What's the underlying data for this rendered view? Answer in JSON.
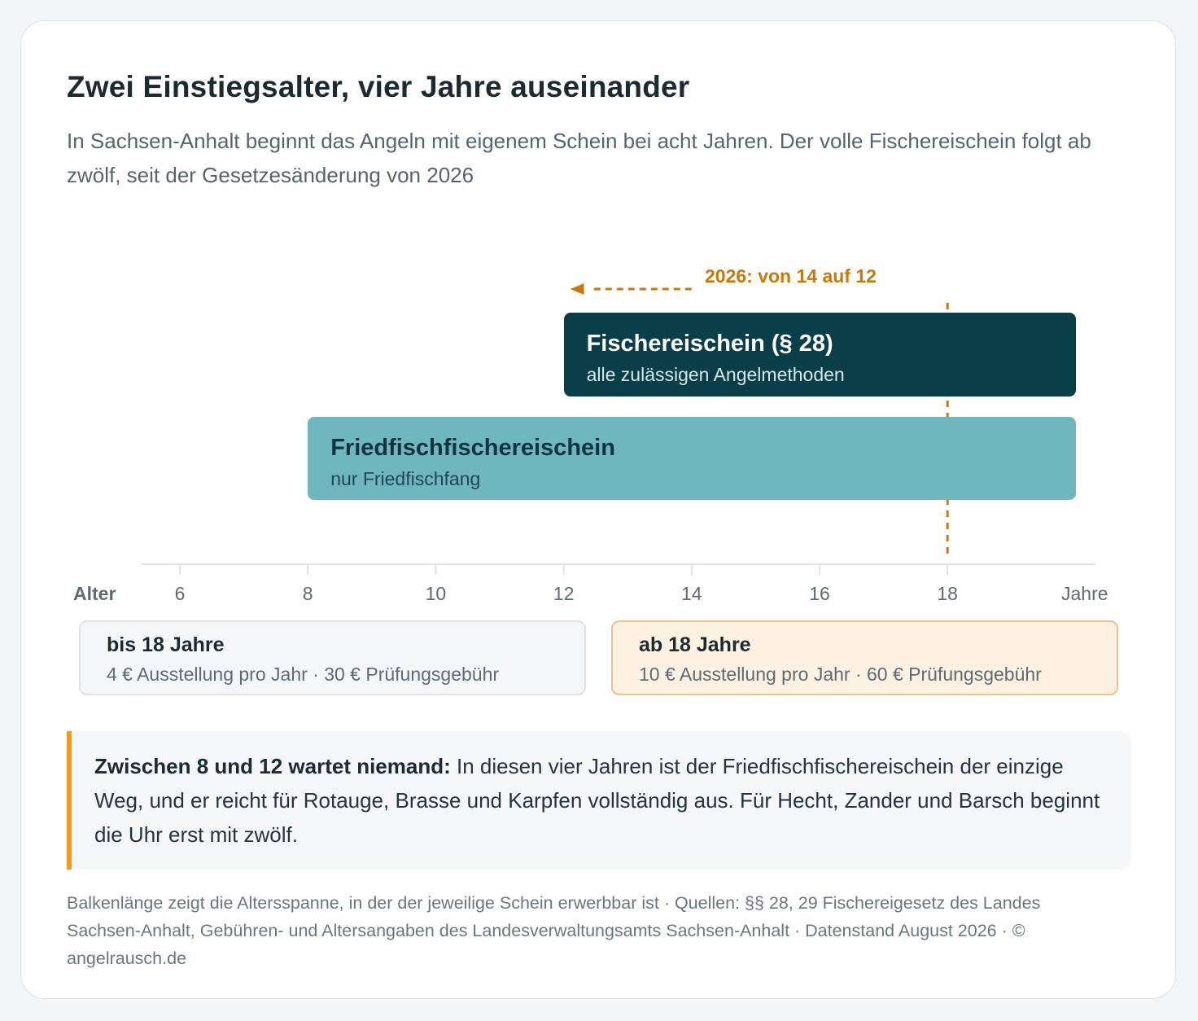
{
  "header": {
    "title": "Zwei Einstiegsalter, vier Jahre auseinander",
    "subtitle": "In Sachsen-Anhalt beginnt das Angeln mit eigenem Schein bei acht Jahren. Der volle Fischereischein folgt ab zwölf, seit der Gesetzesänderung von 2026"
  },
  "chart_data": {
    "type": "bar",
    "orientation": "horizontal",
    "x_axis": {
      "label_left": "Alter",
      "label_right": "Jahre",
      "ticks": [
        6,
        8,
        10,
        12,
        14,
        16,
        18
      ],
      "tick_labels": [
        "6",
        "8",
        "10",
        "12",
        "14",
        "16",
        "18"
      ],
      "range": [
        5,
        20
      ]
    },
    "series": [
      {
        "name": "Fischereischein (§ 28)",
        "description": "alle zulässigen Angelmethoden",
        "start": 12,
        "end": 20,
        "color": "#0a3f4a"
      },
      {
        "name": "Friedfischfischereischein",
        "description": "nur Friedfischfang",
        "start": 8,
        "end": 20,
        "color": "#70b6bf"
      }
    ],
    "reference_line": {
      "x": 18
    },
    "annotation": {
      "text": "2026: von 14 auf 12",
      "from": 14,
      "to": 12,
      "color": "#c9780a"
    },
    "grid": false
  },
  "fees": {
    "young": {
      "title": "bis 18 Jahre",
      "detail": "4 € Ausstellung pro Jahr · 30 € Prüfungsgebühr"
    },
    "adult": {
      "title": "ab 18 Jahre",
      "detail": "10 € Ausstellung pro Jahr · 60 € Prüfungsgebühr"
    }
  },
  "callout": {
    "lead": "Zwischen 8 und 12 wartet niemand:",
    "text": " In diesen vier Jahren ist der Friedfischfischereischein der einzige Weg, und er reicht für Rotauge, Brasse und Karpfen vollständig aus. Für Hecht, Zander und Barsch beginnt die Uhr erst mit zwölf."
  },
  "footnote": "Balkenlänge zeigt die Altersspanne, in der der jeweilige Schein erwerbbar ist · Quellen: §§ 28, 29 Fischereigesetz des Landes Sachsen-Anhalt, Gebühren- und Altersangaben des Landesverwaltungsamts Sachsen-Anhalt · Datenstand August 2026 · © angelrausch.de",
  "colors": {
    "accent": "#c9780a",
    "dark_bar": "#0a3f4a",
    "light_bar": "#70b6bf",
    "callout_border": "#f59a1f"
  }
}
